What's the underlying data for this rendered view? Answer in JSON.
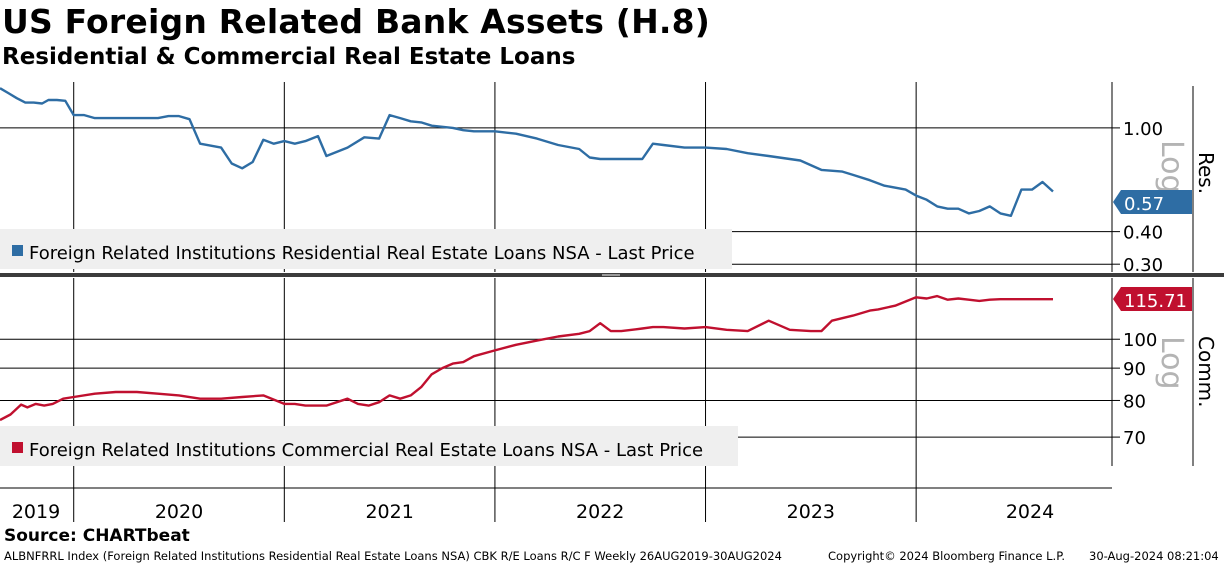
{
  "header": {
    "title": "US Foreign Related Bank Assets (H.8)",
    "subtitle": "Residential & Commercial Real Estate Loans"
  },
  "footer": {
    "source": "Source: CHARTbeat",
    "ticker_info": "ALBNFRRL Index (Foreign Related Institutions Residential Real Estate Loans NSA) CBK R/E Loans R/C F  Weekly 26AUG2019-30AUG2024",
    "copyright": "Copyright© 2024 Bloomberg Finance L.P.",
    "timestamp": "30-Aug-2024 08:21:04"
  },
  "colors": {
    "residential": "#2e6da4",
    "commercial": "#c0102f",
    "badge_text": "#ffffff"
  },
  "chart_data": [
    {
      "type": "line",
      "panel": "top",
      "series_name": "Foreign Related Institutions Residential Real Estate Loans NSA - Last Price",
      "axis_side_label": "Res.",
      "scale_label": "Log",
      "scale": "log",
      "ylim": [
        0.28,
        1.5
      ],
      "yticks": [
        1.0,
        0.4,
        0.3
      ],
      "ytick_labels": [
        "1.00",
        "0.40",
        "0.30"
      ],
      "last_value_label": "0.57",
      "x": [
        2019.65,
        2019.69,
        2019.73,
        2019.77,
        2019.81,
        2019.85,
        2019.88,
        2019.92,
        2019.96,
        2020.0,
        2020.05,
        2020.1,
        2020.2,
        2020.3,
        2020.4,
        2020.45,
        2020.5,
        2020.55,
        2020.6,
        2020.7,
        2020.75,
        2020.8,
        2020.85,
        2020.9,
        2020.95,
        2021.0,
        2021.05,
        2021.1,
        2021.13,
        2021.16,
        2021.2,
        2021.3,
        2021.38,
        2021.45,
        2021.5,
        2021.55,
        2021.6,
        2021.65,
        2021.7,
        2021.75,
        2021.8,
        2021.85,
        2021.9,
        2022.0,
        2022.1,
        2022.2,
        2022.3,
        2022.4,
        2022.45,
        2022.5,
        2022.6,
        2022.7,
        2022.75,
        2022.8,
        2022.9,
        2023.0,
        2023.1,
        2023.2,
        2023.3,
        2023.35,
        2023.45,
        2023.55,
        2023.65,
        2023.7,
        2023.78,
        2023.85,
        2023.95,
        2024.0,
        2024.05,
        2024.1,
        2024.15,
        2024.2,
        2024.25,
        2024.3,
        2024.35,
        2024.4,
        2024.45,
        2024.5,
        2024.55,
        2024.6,
        2024.65
      ],
      "values": [
        1.42,
        1.36,
        1.3,
        1.25,
        1.25,
        1.24,
        1.28,
        1.28,
        1.27,
        1.12,
        1.12,
        1.09,
        1.09,
        1.09,
        1.09,
        1.11,
        1.11,
        1.08,
        0.87,
        0.84,
        0.73,
        0.7,
        0.74,
        0.9,
        0.87,
        0.89,
        0.87,
        0.89,
        0.91,
        0.93,
        0.78,
        0.84,
        0.92,
        0.91,
        1.12,
        1.09,
        1.06,
        1.05,
        1.02,
        1.01,
        1.0,
        0.98,
        0.97,
        0.97,
        0.95,
        0.91,
        0.86,
        0.83,
        0.77,
        0.76,
        0.76,
        0.76,
        0.87,
        0.86,
        0.84,
        0.84,
        0.83,
        0.8,
        0.78,
        0.77,
        0.75,
        0.69,
        0.68,
        0.66,
        0.63,
        0.6,
        0.58,
        0.55,
        0.53,
        0.5,
        0.49,
        0.49,
        0.47,
        0.48,
        0.5,
        0.47,
        0.46,
        0.58,
        0.58,
        0.62,
        0.57
      ]
    },
    {
      "type": "line",
      "panel": "bottom",
      "series_name": "Foreign Related Institutions Commercial Real Estate Loans NSA - Last Price",
      "axis_side_label": "Comm.",
      "scale_label": "Log",
      "scale": "log",
      "ylim": [
        63,
        125
      ],
      "yticks": [
        100,
        90,
        80,
        70
      ],
      "ytick_labels": [
        "100",
        "90",
        "80",
        "70"
      ],
      "last_value_label": "115.71",
      "x": [
        2019.65,
        2019.7,
        2019.75,
        2019.78,
        2019.82,
        2019.86,
        2019.9,
        2019.95,
        2020.0,
        2020.1,
        2020.2,
        2020.3,
        2020.4,
        2020.5,
        2020.6,
        2020.7,
        2020.8,
        2020.9,
        2021.0,
        2021.05,
        2021.1,
        2021.2,
        2021.3,
        2021.35,
        2021.4,
        2021.45,
        2021.5,
        2021.55,
        2021.6,
        2021.65,
        2021.7,
        2021.75,
        2021.8,
        2021.85,
        2021.9,
        2022.0,
        2022.1,
        2022.2,
        2022.3,
        2022.4,
        2022.45,
        2022.5,
        2022.55,
        2022.6,
        2022.65,
        2022.7,
        2022.75,
        2022.8,
        2022.9,
        2023.0,
        2023.1,
        2023.2,
        2023.3,
        2023.4,
        2023.5,
        2023.55,
        2023.6,
        2023.7,
        2023.78,
        2023.82,
        2023.9,
        2024.0,
        2024.05,
        2024.1,
        2024.15,
        2024.2,
        2024.25,
        2024.3,
        2024.35,
        2024.4,
        2024.45,
        2024.5,
        2024.55,
        2024.6,
        2024.65
      ],
      "values": [
        74.5,
        76.0,
        78.8,
        78.0,
        79.0,
        78.5,
        79.0,
        80.5,
        81.0,
        82.0,
        82.5,
        82.5,
        82.0,
        81.5,
        80.5,
        80.5,
        81.0,
        81.5,
        79.0,
        79.0,
        78.5,
        78.5,
        80.5,
        79.0,
        78.5,
        79.5,
        81.5,
        80.5,
        81.5,
        84.0,
        88.0,
        90.0,
        91.5,
        92.0,
        94.0,
        96.0,
        98.0,
        99.5,
        101.0,
        102.0,
        103.0,
        106.0,
        103.0,
        103.0,
        103.5,
        104.0,
        104.5,
        104.5,
        104.0,
        104.5,
        103.5,
        103.0,
        107.0,
        103.5,
        103.0,
        103.0,
        107.0,
        109.0,
        111.0,
        111.5,
        113.0,
        116.5,
        116.0,
        117.0,
        115.5,
        116.0,
        115.5,
        115.0,
        115.5,
        115.7,
        115.7,
        115.7,
        115.7,
        115.7,
        115.71
      ]
    }
  ],
  "xaxis": {
    "year_labels": [
      "2019",
      "2020",
      "2021",
      "2022",
      "2023",
      "2024"
    ]
  }
}
